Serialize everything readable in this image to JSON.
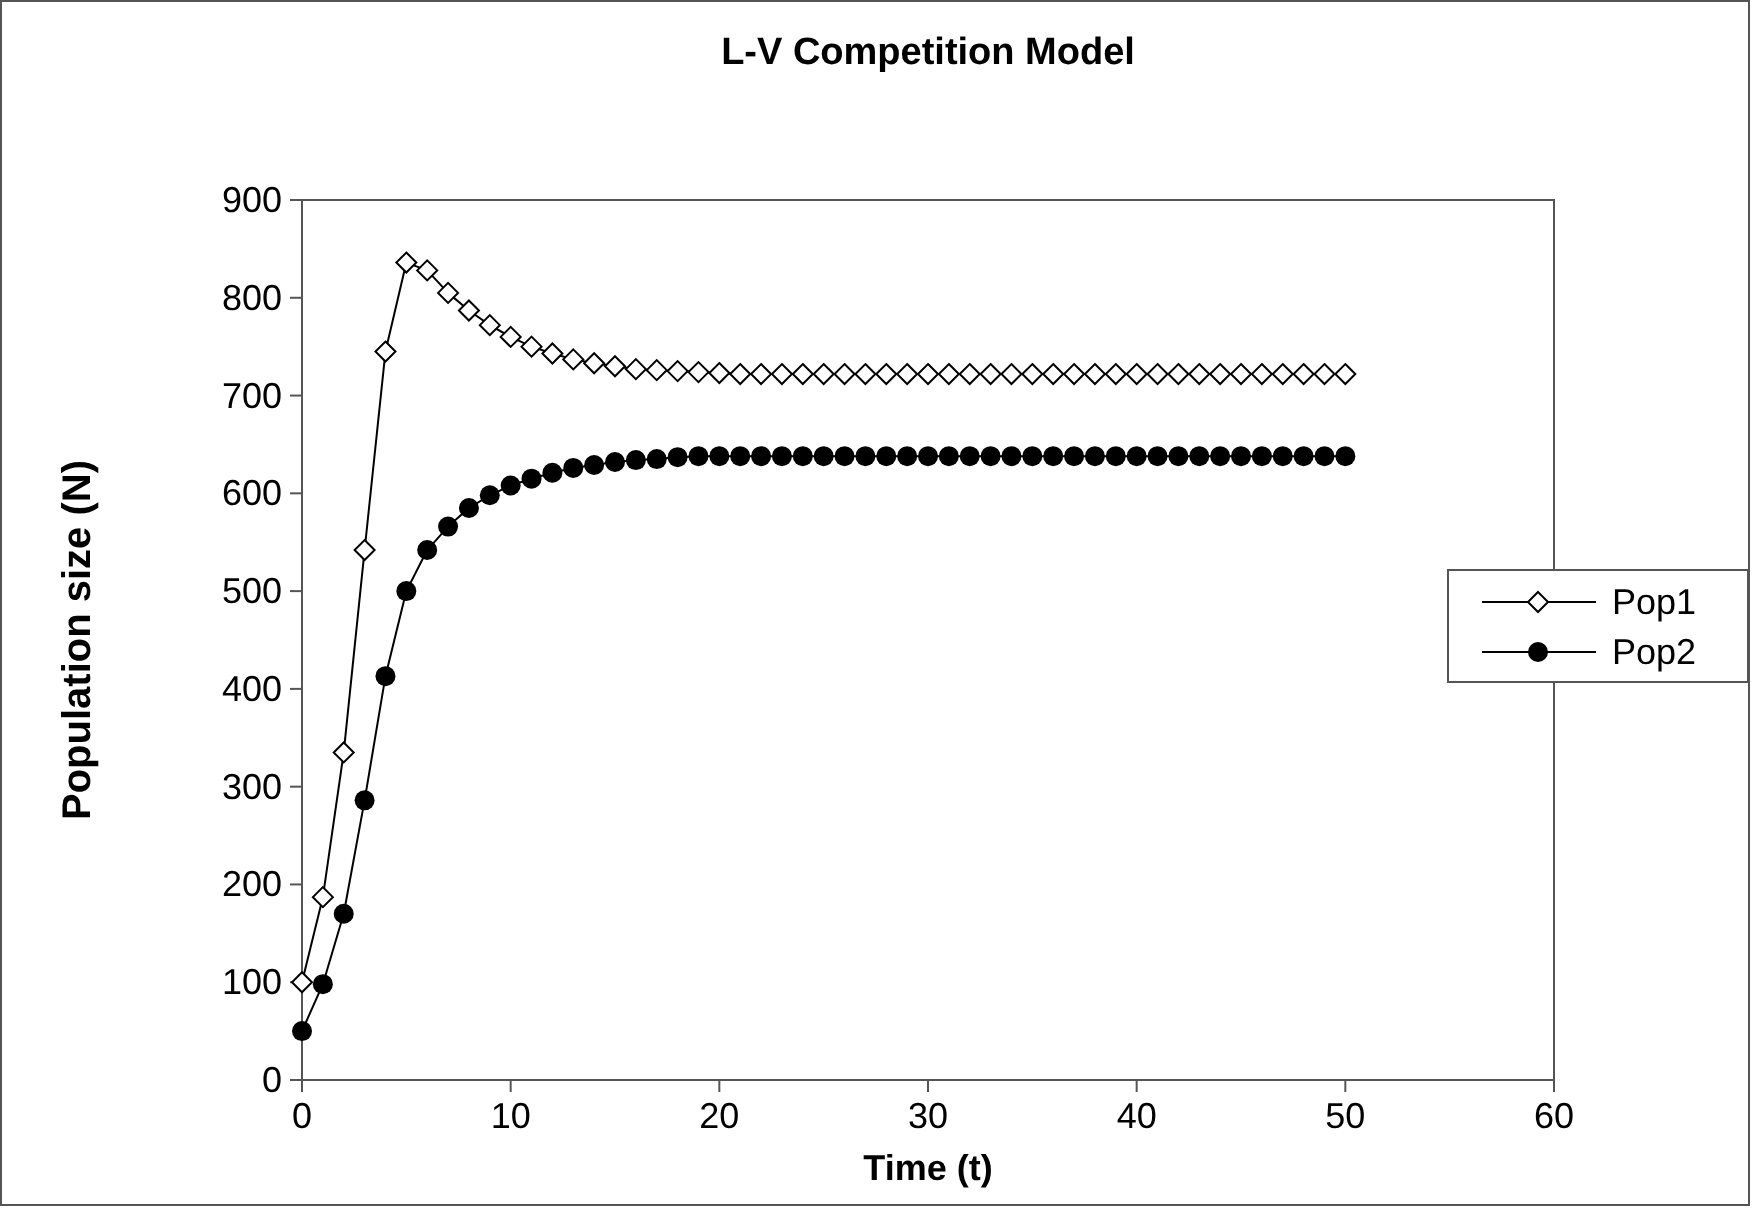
{
  "chart_data": {
    "type": "line",
    "title": "L-V Competition Model",
    "xlabel": "Time (t)",
    "ylabel": "Population size (N)",
    "x": [
      0,
      1,
      2,
      3,
      4,
      5,
      6,
      7,
      8,
      9,
      10,
      11,
      12,
      13,
      14,
      15,
      16,
      17,
      18,
      19,
      20,
      21,
      22,
      23,
      24,
      25,
      26,
      27,
      28,
      29,
      30,
      31,
      32,
      33,
      34,
      35,
      36,
      37,
      38,
      39,
      40,
      41,
      42,
      43,
      44,
      45,
      46,
      47,
      48,
      49,
      50
    ],
    "series": [
      {
        "name": "Pop1",
        "color": "#000000",
        "marker": "diamond",
        "values": [
          100,
          187,
          335,
          542,
          745,
          836,
          828,
          805,
          787,
          772,
          760,
          750,
          743,
          737,
          733,
          730,
          727,
          726,
          725,
          724,
          723,
          722,
          722,
          722,
          722,
          722,
          722,
          722,
          722,
          722,
          722,
          722,
          722,
          722,
          722,
          722,
          722,
          722,
          722,
          722,
          722,
          722,
          722,
          722,
          722,
          722,
          722,
          722,
          722,
          722,
          722
        ]
      },
      {
        "name": "Pop2",
        "color": "#000000",
        "marker": "circle",
        "values": [
          50,
          98,
          170,
          286,
          413,
          500,
          542,
          566,
          585,
          598,
          608,
          615,
          621,
          626,
          629,
          632,
          634,
          635,
          637,
          638,
          638,
          638,
          638,
          638,
          638,
          638,
          638,
          638,
          638,
          638,
          638,
          638,
          638,
          638,
          638,
          638,
          638,
          638,
          638,
          638,
          638,
          638,
          638,
          638,
          638,
          638,
          638,
          638,
          638,
          638,
          638
        ]
      }
    ],
    "xlim": [
      0,
      60
    ],
    "xticks": [
      0,
      10,
      20,
      30,
      40,
      50,
      60
    ],
    "ylim": [
      0,
      900
    ],
    "yticks": [
      0,
      100,
      200,
      300,
      400,
      500,
      600,
      700,
      800,
      900
    ],
    "grid": false,
    "legend": "right",
    "line_style": "solid"
  }
}
